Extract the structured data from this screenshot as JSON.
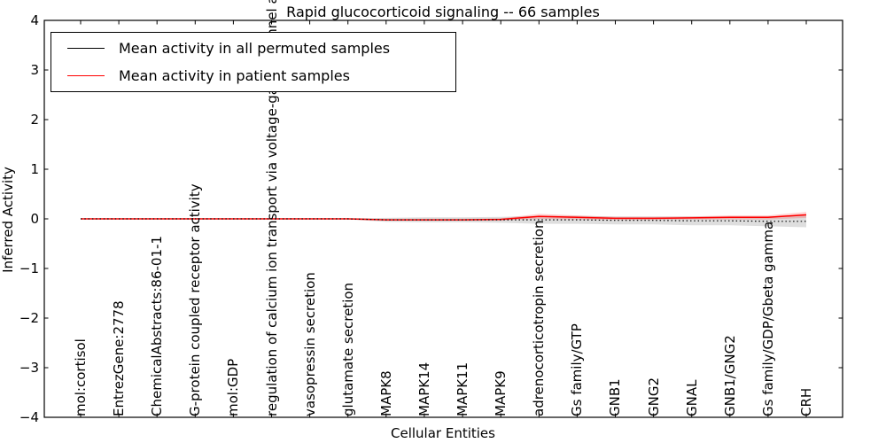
{
  "title": "Rapid glucocorticoid signaling -- 66 samples",
  "axes": {
    "xlabel": "Cellular Entities",
    "ylabel": "Inferred Activity",
    "ytick_labels": [
      "4",
      "3",
      "2",
      "1",
      "0",
      "−1",
      "−2",
      "−3",
      "−4"
    ],
    "ytick_values": [
      4,
      3,
      2,
      1,
      0,
      -1,
      -2,
      -3,
      -4
    ]
  },
  "legend": {
    "items": [
      {
        "label": "Mean activity in all permuted samples",
        "color": "#000000"
      },
      {
        "label": "Mean activity in patient samples",
        "color": "#ff0000"
      }
    ]
  },
  "chart_data": {
    "type": "line",
    "title": "Rapid glucocorticoid signaling -- 66 samples",
    "xlabel": "Cellular Entities",
    "ylabel": "Inferred Activity",
    "ylim": [
      -4,
      4
    ],
    "grid": false,
    "legend_position": "upper left",
    "categories": [
      "mol:cortisol",
      "EntrezGene:2778",
      "ChemicalAbstracts:86-01-1",
      "G-protein coupled receptor activity",
      "mol:GDP",
      "regulation of calcium ion transport via voltage-gated channel activity",
      "vasopressin secretion",
      "glutamate secretion",
      "MAPK8",
      "MAPK14",
      "MAPK11",
      "MAPK9",
      "adrenocorticotropin secretion",
      "Gs family/GTP",
      "GNB1",
      "GNG2",
      "GNAL",
      "GNB1/GNG2",
      "Gs family/GDP/Gbeta gamma",
      "CRH"
    ],
    "series": [
      {
        "name": "Mean activity in patient samples",
        "color": "#ff0000",
        "style": "solid",
        "values": [
          0,
          0,
          0,
          0,
          0,
          0,
          0,
          0,
          -0.02,
          -0.02,
          -0.02,
          -0.01,
          0.05,
          0.03,
          0.01,
          0.01,
          0.02,
          0.03,
          0.03,
          0.08
        ]
      },
      {
        "name": "Mean activity in all permuted samples",
        "color": "#000000",
        "style": "dotted",
        "values": [
          0,
          0,
          0,
          0,
          0,
          0,
          0,
          0,
          -0.02,
          -0.02,
          -0.02,
          -0.02,
          -0.02,
          -0.02,
          -0.03,
          -0.03,
          -0.04,
          -0.04,
          -0.05,
          -0.05
        ]
      }
    ],
    "bands": [
      {
        "around": "Mean activity in all permuted samples",
        "color": "#000000",
        "opacity": 0.13,
        "half_widths": [
          0,
          0,
          0,
          0,
          0,
          0,
          0,
          0.01,
          0.04,
          0.05,
          0.05,
          0.06,
          0.08,
          0.08,
          0.08,
          0.08,
          0.09,
          0.09,
          0.1,
          0.12
        ]
      },
      {
        "around": "Mean activity in patient samples",
        "color": "#ff0000",
        "opacity": 0.18,
        "half_widths": [
          0,
          0,
          0,
          0,
          0,
          0,
          0,
          0,
          0.01,
          0.01,
          0.01,
          0.02,
          0.05,
          0.04,
          0.03,
          0.03,
          0.03,
          0.04,
          0.04,
          0.06
        ]
      }
    ]
  }
}
